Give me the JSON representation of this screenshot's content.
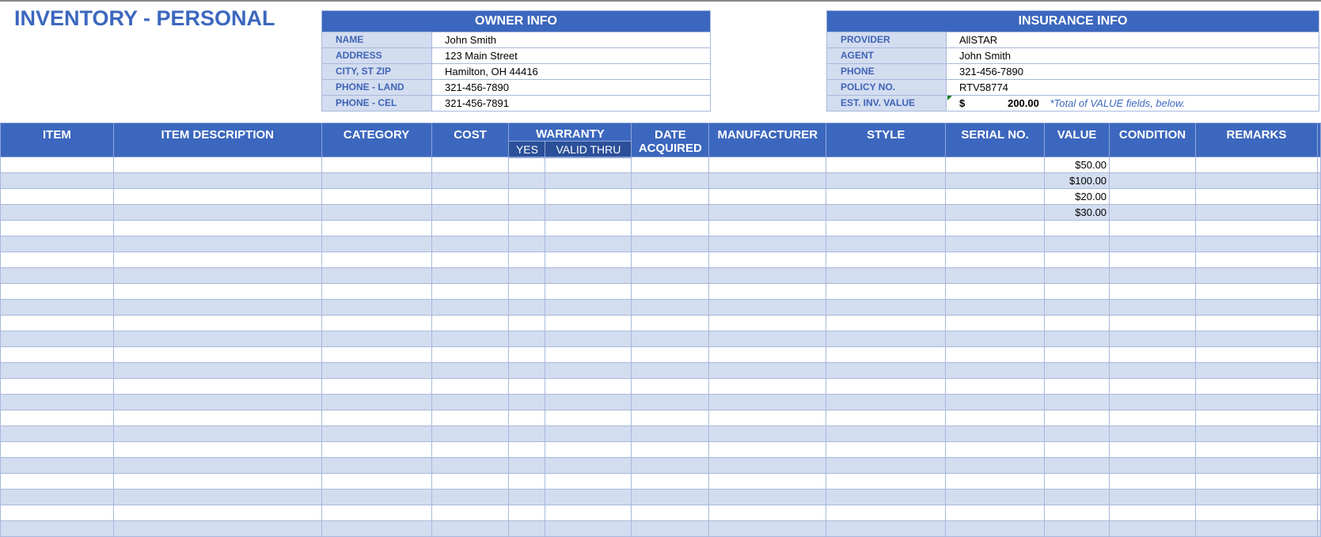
{
  "title": "INVENTORY - PERSONAL",
  "owner": {
    "heading": "OWNER INFO",
    "fields": [
      {
        "label": "NAME",
        "value": "John Smith"
      },
      {
        "label": "ADDRESS",
        "value": "123 Main Street"
      },
      {
        "label": "CITY, ST  ZIP",
        "value": "Hamilton, OH  44416"
      },
      {
        "label": "PHONE - LAND",
        "value": "321-456-7890"
      },
      {
        "label": "PHONE - CEL",
        "value": "321-456-7891"
      }
    ]
  },
  "insurance": {
    "heading": "INSURANCE INFO",
    "fields": [
      {
        "label": "PROVIDER",
        "value": "AllSTAR"
      },
      {
        "label": "AGENT",
        "value": "John Smith"
      },
      {
        "label": "PHONE",
        "value": "321-456-7890"
      },
      {
        "label": "POLICY NO.",
        "value": "RTV58774"
      }
    ],
    "est_label": "EST. INV. VALUE",
    "est_currency": "$",
    "est_value": "200.00",
    "est_note": "*Total of VALUE fields, below."
  },
  "columns": {
    "item": "ITEM",
    "description": "ITEM DESCRIPTION",
    "category": "CATEGORY",
    "cost": "COST",
    "warranty": "WARRANTY",
    "warranty_yes": "YES",
    "warranty_valid": "VALID THRU",
    "date_acquired": "DATE ACQUIRED",
    "manufacturer": "MANUFACTURER",
    "style": "STYLE",
    "serial": "SERIAL NO.",
    "value": "VALUE",
    "condition": "CONDITION",
    "remarks": "REMARKS"
  },
  "rows": [
    {
      "value": "$50.00"
    },
    {
      "value": "$100.00"
    },
    {
      "value": "$20.00"
    },
    {
      "value": "$30.00"
    },
    {
      "value": ""
    },
    {
      "value": ""
    },
    {
      "value": ""
    },
    {
      "value": ""
    },
    {
      "value": ""
    },
    {
      "value": ""
    },
    {
      "value": ""
    },
    {
      "value": ""
    },
    {
      "value": ""
    },
    {
      "value": ""
    },
    {
      "value": ""
    },
    {
      "value": ""
    },
    {
      "value": ""
    },
    {
      "value": ""
    },
    {
      "value": ""
    },
    {
      "value": ""
    },
    {
      "value": ""
    },
    {
      "value": ""
    },
    {
      "value": ""
    },
    {
      "value": ""
    }
  ],
  "colors": {
    "header": "#3c67be",
    "subheader": "#2b4f98",
    "band": "#d3ddf0",
    "grid": "#a8b8dc"
  }
}
